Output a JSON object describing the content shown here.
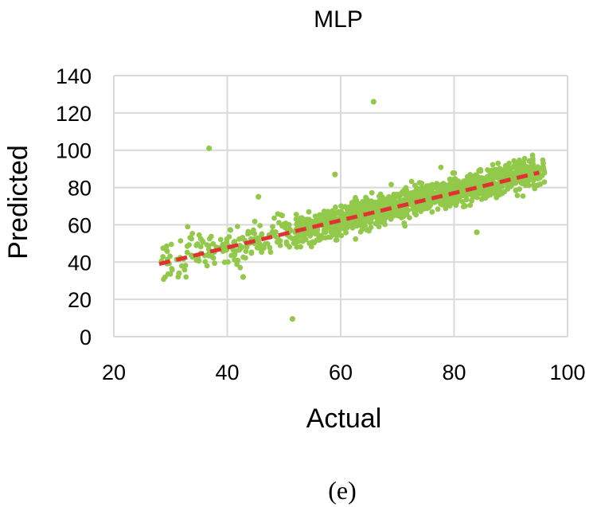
{
  "chart_data": {
    "type": "scatter",
    "title": "MLP",
    "xlabel": "Actual",
    "ylabel": "Predicted",
    "caption": "(e)",
    "xlim": [
      20,
      100
    ],
    "ylim": [
      0,
      140
    ],
    "x_ticks": [
      "20",
      "40",
      "60",
      "80",
      "100"
    ],
    "y_ticks": [
      "0",
      "20",
      "40",
      "60",
      "80",
      "100",
      "120",
      "140"
    ],
    "grid": true,
    "colors": {
      "points": "#92c94a",
      "trend": "#e03232",
      "grid": "#d9d9d9"
    },
    "trendline": {
      "x": [
        28,
        95
      ],
      "y": [
        39,
        88
      ]
    },
    "outliers": [
      {
        "x": 65.8,
        "y": 126
      },
      {
        "x": 36.8,
        "y": 101
      },
      {
        "x": 51.5,
        "y": 9.5
      },
      {
        "x": 59,
        "y": 87
      },
      {
        "x": 42.8,
        "y": 32
      },
      {
        "x": 31.5,
        "y": 34
      },
      {
        "x": 45.5,
        "y": 75
      },
      {
        "x": 84,
        "y": 56
      }
    ],
    "point_cloud": {
      "description_only": "",
      "x_range": [
        28,
        96
      ],
      "count": 1400
    }
  }
}
